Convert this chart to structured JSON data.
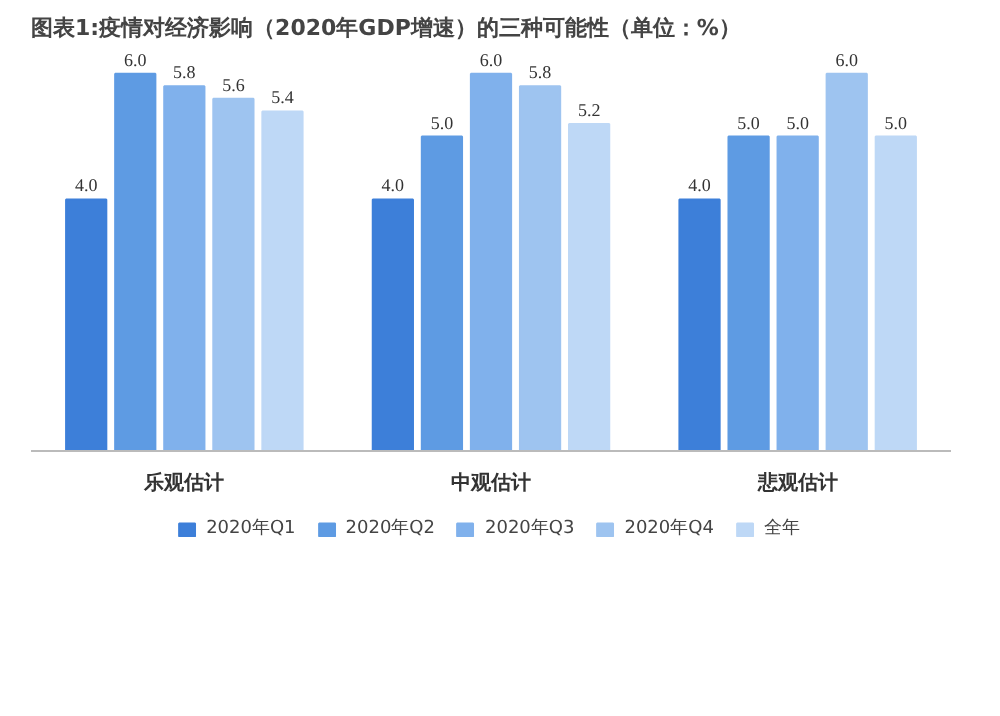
{
  "chart_data": {
    "type": "bar",
    "title": "图表1:疫情对经济影响（2020年GDP增速）的三种可能性（单位：%）",
    "categories": [
      "乐观估计",
      "中观估计",
      "悲观估计"
    ],
    "series": [
      {
        "name": "2020年Q1",
        "color": "#3d7fd9",
        "values": [
          4.0,
          4.0,
          4.0
        ],
        "value_labels": [
          "4.0",
          "4.0",
          "4.0"
        ]
      },
      {
        "name": "2020年Q2",
        "color": "#5e9be3",
        "values": [
          6.0,
          5.0,
          5.0
        ],
        "value_labels": [
          "6.0",
          "5.0",
          "5.0"
        ]
      },
      {
        "name": "2020年Q3",
        "color": "#80b1ec",
        "values": [
          5.8,
          6.0,
          5.0
        ],
        "value_labels": [
          "5.8",
          "6.0",
          "5.0"
        ]
      },
      {
        "name": "2020年Q4",
        "color": "#9ec4f0",
        "values": [
          5.6,
          5.8,
          6.0
        ],
        "value_labels": [
          "5.6",
          "5.8",
          "6.0"
        ]
      },
      {
        "name": "全年",
        "color": "#bed8f6",
        "values": [
          5.4,
          5.2,
          5.0
        ],
        "value_labels": [
          "5.4",
          "5.2",
          "5.0"
        ]
      }
    ],
    "legend": "bottom",
    "tick_labels": "x"
  }
}
